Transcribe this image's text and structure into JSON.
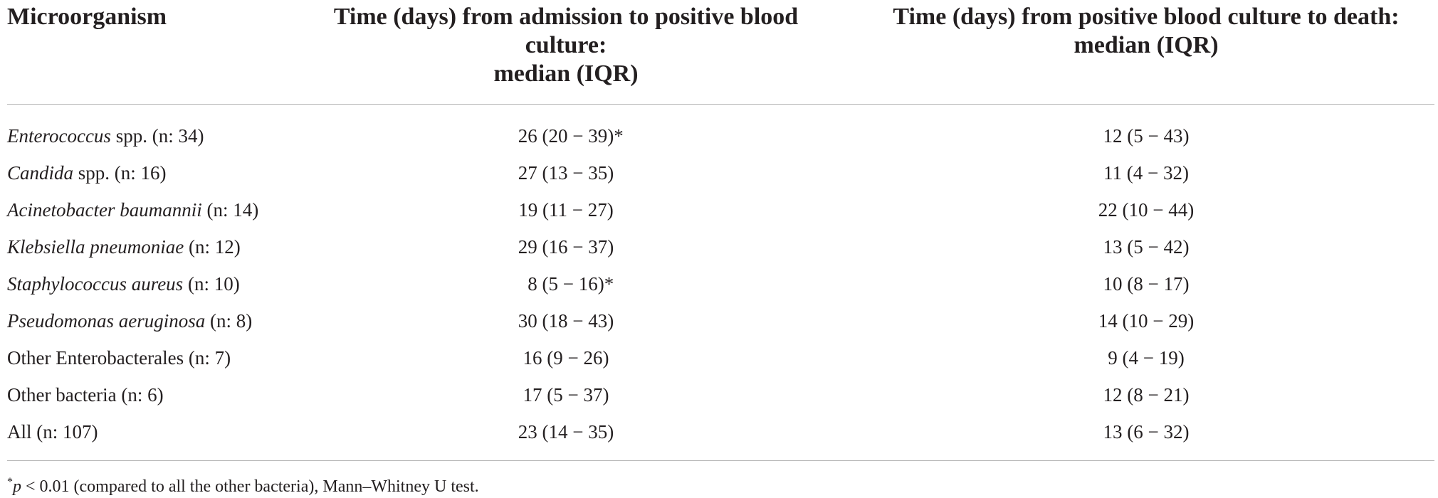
{
  "table": {
    "headers": {
      "microorganism": "Microorganism",
      "admission_to_culture": [
        "Time (days) from admission to positive blood",
        "culture:",
        "median (IQR)"
      ],
      "culture_to_death": [
        "Time (days) from positive blood culture to death:",
        "median (IQR)"
      ]
    },
    "rows": [
      {
        "name_italic": "Enterococcus",
        "name_rest": " spp. (n: 34)",
        "admission_to_culture": "26 (20 − 39)",
        "flag": "*",
        "culture_to_death": "12 (5 − 43)"
      },
      {
        "name_italic": "Candida",
        "name_rest": " spp. (n: 16)",
        "admission_to_culture": "27 (13 − 35)",
        "flag": "",
        "culture_to_death": "11 (4 − 32)"
      },
      {
        "name_italic": "Acinetobacter baumannii",
        "name_rest": " (n: 14)",
        "admission_to_culture": "19 (11 − 27)",
        "flag": "",
        "culture_to_death": "22 (10 − 44)"
      },
      {
        "name_italic": "Klebsiella pneumoniae",
        "name_rest": " (n: 12)",
        "admission_to_culture": "29 (16 − 37)",
        "flag": "",
        "culture_to_death": "13 (5 − 42)"
      },
      {
        "name_italic": "Staphylococcus aureus",
        "name_rest": " (n: 10)",
        "admission_to_culture": "8 (5 − 16)",
        "flag": "*",
        "culture_to_death": "10 (8 − 17)"
      },
      {
        "name_italic": "Pseudomonas aeruginosa",
        "name_rest": " (n: 8)",
        "admission_to_culture": "30 (18 − 43)",
        "flag": "",
        "culture_to_death": "14 (10 − 29)"
      },
      {
        "name_italic": "",
        "name_rest": "Other Enterobacterales (n: 7)",
        "admission_to_culture": "16 (9 − 26)",
        "flag": "",
        "culture_to_death": "9 (4 − 19)"
      },
      {
        "name_italic": "",
        "name_rest": "Other bacteria (n: 6)",
        "admission_to_culture": "17 (5 − 37)",
        "flag": "",
        "culture_to_death": "12 (8 − 21)"
      },
      {
        "name_italic": "",
        "name_rest": "All (n: 107)",
        "admission_to_culture": "23 (14 − 35)",
        "flag": "",
        "culture_to_death": "13 (6 − 32)"
      }
    ]
  },
  "footnote": {
    "marker": "*",
    "variable": "p",
    "text": " < 0.01 (compared to all the other bacteria), Mann–Whitney U test."
  }
}
